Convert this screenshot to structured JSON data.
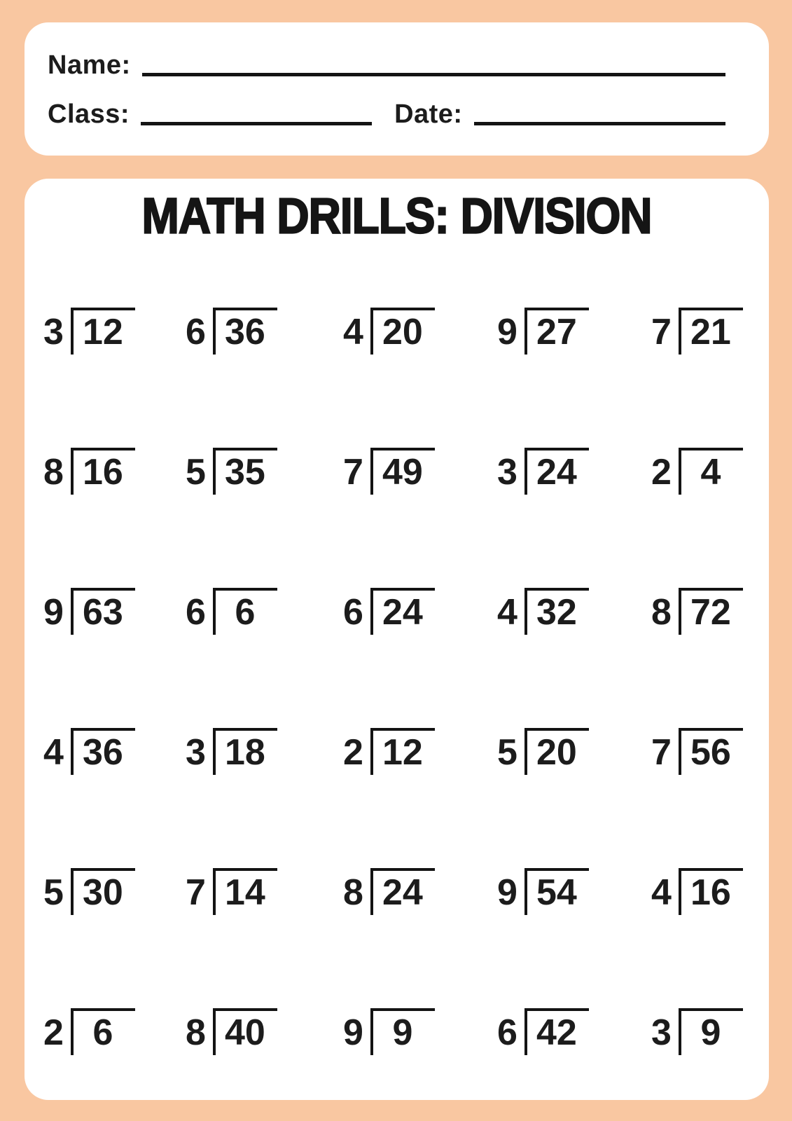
{
  "colors": {
    "background": "#f9c7a1",
    "card": "#ffffff",
    "ink": "#1c1c1c"
  },
  "header": {
    "name_label": "Name:",
    "class_label": "Class:",
    "date_label": "Date:",
    "name_value": "",
    "class_value": "",
    "date_value": ""
  },
  "title": "MATH DRILLS: DIVISION",
  "problems": {
    "columns": 5,
    "rows": 6,
    "count": 30,
    "notation": "long-division-bracket",
    "items": [
      {
        "divisor": "3",
        "dividend": "12"
      },
      {
        "divisor": "6",
        "dividend": "36"
      },
      {
        "divisor": "4",
        "dividend": "20"
      },
      {
        "divisor": "9",
        "dividend": "27"
      },
      {
        "divisor": "7",
        "dividend": "21"
      },
      {
        "divisor": "8",
        "dividend": "16"
      },
      {
        "divisor": "5",
        "dividend": "35"
      },
      {
        "divisor": "7",
        "dividend": "49"
      },
      {
        "divisor": "3",
        "dividend": "24"
      },
      {
        "divisor": "2",
        "dividend": "4"
      },
      {
        "divisor": "9",
        "dividend": "63"
      },
      {
        "divisor": "6",
        "dividend": "6"
      },
      {
        "divisor": "6",
        "dividend": "24"
      },
      {
        "divisor": "4",
        "dividend": "32"
      },
      {
        "divisor": "8",
        "dividend": "72"
      },
      {
        "divisor": "4",
        "dividend": "36"
      },
      {
        "divisor": "3",
        "dividend": "18"
      },
      {
        "divisor": "2",
        "dividend": "12"
      },
      {
        "divisor": "5",
        "dividend": "20"
      },
      {
        "divisor": "7",
        "dividend": "56"
      },
      {
        "divisor": "5",
        "dividend": "30"
      },
      {
        "divisor": "7",
        "dividend": "14"
      },
      {
        "divisor": "8",
        "dividend": "24"
      },
      {
        "divisor": "9",
        "dividend": "54"
      },
      {
        "divisor": "4",
        "dividend": "16"
      },
      {
        "divisor": "2",
        "dividend": "6"
      },
      {
        "divisor": "8",
        "dividend": "40"
      },
      {
        "divisor": "9",
        "dividend": "9"
      },
      {
        "divisor": "6",
        "dividend": "42"
      },
      {
        "divisor": "3",
        "dividend": "9"
      }
    ]
  }
}
